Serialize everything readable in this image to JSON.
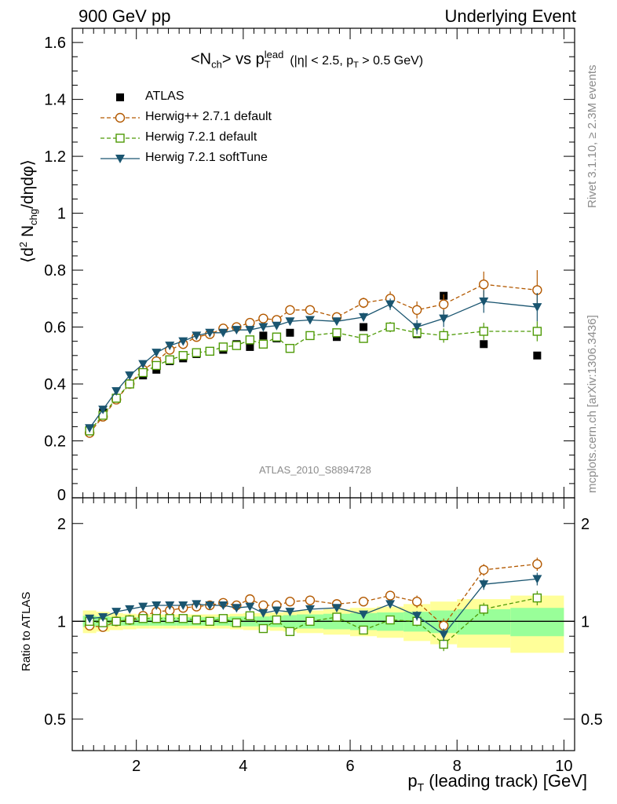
{
  "header": {
    "energy_label": "900 GeV pp",
    "process_label": "Underlying Event"
  },
  "side_labels": {
    "rivet": "Rivet 3.1.10, ≥ 2.3M events",
    "mcplots": "mcplots.cern.ch [arXiv:1306.3436]"
  },
  "analysis_id": "ATLAS_2010_S8894728",
  "colors": {
    "data": "#000000",
    "herwigpp": "#b35900",
    "herwig721": "#4e9a06",
    "softtune": "#1a5570",
    "band_inner": "#99ff99",
    "band_outer": "#ffff99"
  },
  "chart_data": [
    {
      "type": "scatter",
      "panel": "main",
      "title": "<N_ch> vs p_T^lead (|η| < 2.5, p_T > 0.5 GeV)",
      "ylabel": "⟨d² N_chg/dηdφ⟩",
      "ylim": [
        0,
        1.65
      ],
      "xlim": [
        0.8,
        10.2
      ],
      "yticks": [
        0,
        0.2,
        0.4,
        0.6,
        0.8,
        1,
        1.2,
        1.4,
        1.6
      ],
      "legend_position": "top-left",
      "x": [
        1.125,
        1.375,
        1.625,
        1.875,
        2.125,
        2.375,
        2.625,
        2.875,
        3.125,
        3.375,
        3.625,
        3.875,
        4.125,
        4.375,
        4.625,
        4.875,
        5.25,
        5.75,
        6.25,
        6.75,
        7.25,
        7.75,
        8.5,
        9.5
      ],
      "series": [
        {
          "name": "ATLAS",
          "marker": "filled-square",
          "values": [
            0.24,
            0.3,
            0.35,
            0.4,
            0.43,
            0.45,
            0.48,
            0.49,
            0.505,
            0.515,
            0.52,
            0.54,
            0.53,
            0.57,
            0.56,
            0.58,
            0.57,
            0.565,
            0.6,
            0.6,
            0.575,
            0.71,
            0.54,
            0.5
          ]
        },
        {
          "name": "Herwig++ 2.7.1 default",
          "marker": "open-circle",
          "values": [
            0.228,
            0.285,
            0.345,
            0.4,
            0.45,
            0.48,
            0.52,
            0.54,
            0.565,
            0.575,
            0.595,
            0.6,
            0.615,
            0.63,
            0.625,
            0.66,
            0.66,
            0.635,
            0.685,
            0.7,
            0.66,
            0.68,
            0.75,
            0.73
          ],
          "errors": [
            0.005,
            0.005,
            0.005,
            0.005,
            0.005,
            0.005,
            0.005,
            0.005,
            0.006,
            0.006,
            0.006,
            0.007,
            0.007,
            0.008,
            0.008,
            0.009,
            0.01,
            0.012,
            0.018,
            0.025,
            0.03,
            0.035,
            0.045,
            0.07
          ]
        },
        {
          "name": "Herwig 7.2.1 default",
          "marker": "open-square",
          "values": [
            0.235,
            0.29,
            0.35,
            0.4,
            0.44,
            0.465,
            0.485,
            0.5,
            0.51,
            0.515,
            0.53,
            0.535,
            0.555,
            0.54,
            0.565,
            0.525,
            0.57,
            0.58,
            0.56,
            0.6,
            0.58,
            0.57,
            0.585,
            0.585
          ],
          "errors": [
            0.005,
            0.005,
            0.005,
            0.005,
            0.005,
            0.005,
            0.005,
            0.005,
            0.006,
            0.006,
            0.006,
            0.007,
            0.007,
            0.008,
            0.008,
            0.009,
            0.01,
            0.012,
            0.015,
            0.018,
            0.02,
            0.025,
            0.03,
            0.035
          ]
        },
        {
          "name": "Herwig 7.2.1 softTune",
          "marker": "filled-triangle-down",
          "values": [
            0.245,
            0.31,
            0.375,
            0.43,
            0.47,
            0.51,
            0.535,
            0.55,
            0.57,
            0.58,
            0.58,
            0.59,
            0.59,
            0.6,
            0.605,
            0.62,
            0.625,
            0.62,
            0.635,
            0.68,
            0.6,
            0.63,
            0.69,
            0.67
          ],
          "errors": [
            0.005,
            0.005,
            0.005,
            0.005,
            0.005,
            0.005,
            0.005,
            0.005,
            0.006,
            0.006,
            0.006,
            0.007,
            0.007,
            0.008,
            0.008,
            0.009,
            0.01,
            0.012,
            0.015,
            0.02,
            0.025,
            0.03,
            0.04,
            0.05
          ]
        }
      ]
    },
    {
      "type": "scatter",
      "panel": "ratio",
      "ylabel": "Ratio to ATLAS",
      "xlabel": "p_T (leading track) [GeV]",
      "ylim": [
        0.4,
        2.4
      ],
      "log_y": true,
      "xlim": [
        0.8,
        10.2
      ],
      "yticks": [
        0.5,
        1,
        2
      ],
      "xticks": [
        2,
        4,
        6,
        8,
        10
      ],
      "band_edges": [
        1.0,
        1.25,
        1.5,
        1.75,
        2.0,
        2.25,
        2.5,
        2.75,
        3.0,
        3.25,
        3.5,
        3.75,
        4.0,
        4.25,
        4.5,
        4.75,
        5.0,
        5.5,
        6.0,
        6.5,
        7.0,
        7.5,
        8.0,
        9.0,
        10.0
      ],
      "band_inner": [
        0.04,
        0.035,
        0.03,
        0.03,
        0.03,
        0.03,
        0.03,
        0.03,
        0.03,
        0.03,
        0.03,
        0.035,
        0.035,
        0.035,
        0.04,
        0.045,
        0.05,
        0.055,
        0.06,
        0.065,
        0.07,
        0.08,
        0.09,
        0.1
      ],
      "band_outer": [
        0.08,
        0.07,
        0.06,
        0.055,
        0.05,
        0.05,
        0.05,
        0.05,
        0.05,
        0.05,
        0.05,
        0.055,
        0.06,
        0.06,
        0.065,
        0.07,
        0.08,
        0.09,
        0.1,
        0.11,
        0.13,
        0.15,
        0.17,
        0.2
      ],
      "x": [
        1.125,
        1.375,
        1.625,
        1.875,
        2.125,
        2.375,
        2.625,
        2.875,
        3.125,
        3.375,
        3.625,
        3.875,
        4.125,
        4.375,
        4.625,
        4.875,
        5.25,
        5.75,
        6.25,
        6.75,
        7.25,
        7.75,
        8.5,
        9.5
      ],
      "series": [
        {
          "name": "Herwig++ 2.7.1 default",
          "values": [
            0.97,
            0.96,
            1.0,
            1.01,
            1.04,
            1.07,
            1.08,
            1.1,
            1.11,
            1.12,
            1.14,
            1.12,
            1.17,
            1.12,
            1.12,
            1.15,
            1.16,
            1.13,
            1.15,
            1.2,
            1.15,
            0.97,
            1.44,
            1.5
          ],
          "errors": [
            0.01,
            0.01,
            0.01,
            0.01,
            0.01,
            0.01,
            0.01,
            0.01,
            0.01,
            0.01,
            0.01,
            0.01,
            0.012,
            0.012,
            0.012,
            0.014,
            0.016,
            0.02,
            0.03,
            0.04,
            0.05,
            0.05,
            0.06,
            0.07
          ]
        },
        {
          "name": "Herwig 7.2.1 default",
          "values": [
            1.0,
            0.99,
            1.0,
            1.01,
            1.02,
            1.02,
            1.02,
            1.02,
            1.01,
            1.0,
            1.02,
            0.99,
            1.04,
            0.95,
            1.01,
            0.93,
            1.0,
            1.03,
            0.94,
            1.01,
            1.0,
            0.85,
            1.09,
            1.18
          ],
          "errors": [
            0.01,
            0.01,
            0.01,
            0.01,
            0.01,
            0.01,
            0.01,
            0.01,
            0.01,
            0.01,
            0.01,
            0.01,
            0.012,
            0.012,
            0.012,
            0.014,
            0.016,
            0.02,
            0.025,
            0.03,
            0.035,
            0.04,
            0.05,
            0.06
          ]
        },
        {
          "name": "Herwig 7.2.1 softTune",
          "values": [
            1.02,
            1.03,
            1.07,
            1.09,
            1.11,
            1.12,
            1.12,
            1.12,
            1.13,
            1.12,
            1.12,
            1.1,
            1.11,
            1.06,
            1.08,
            1.07,
            1.09,
            1.1,
            1.05,
            1.13,
            1.04,
            0.91,
            1.3,
            1.35
          ],
          "errors": [
            0.01,
            0.01,
            0.01,
            0.01,
            0.01,
            0.01,
            0.01,
            0.01,
            0.01,
            0.01,
            0.01,
            0.01,
            0.012,
            0.012,
            0.012,
            0.014,
            0.016,
            0.02,
            0.025,
            0.03,
            0.035,
            0.04,
            0.05,
            0.06
          ]
        }
      ]
    }
  ]
}
